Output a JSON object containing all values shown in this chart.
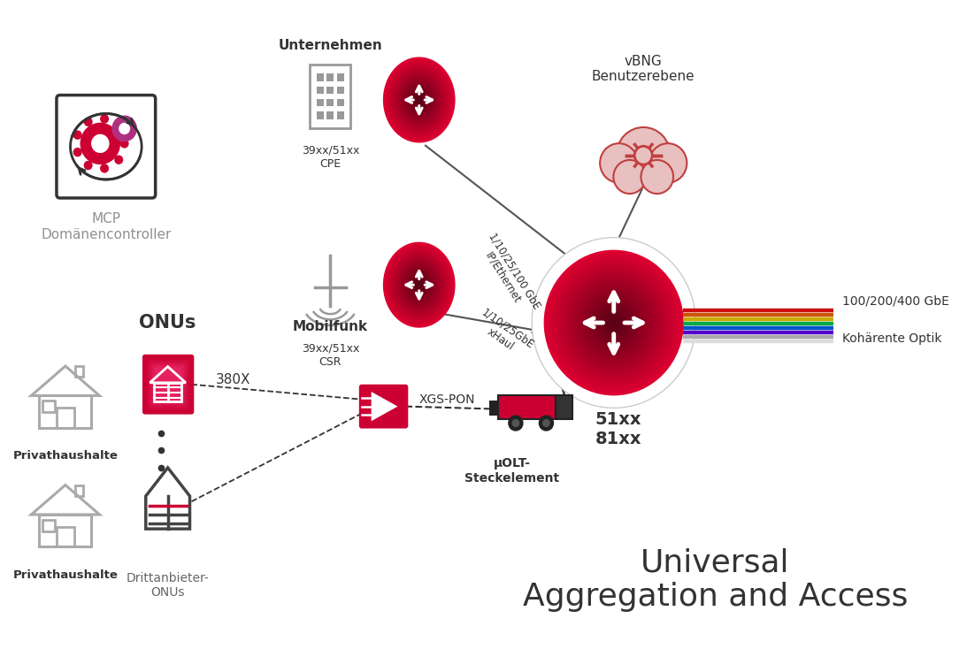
{
  "title": "Universal\nAggregation and Access",
  "title_fontsize": 26,
  "bg_color": "#ffffff",
  "main_node_label": "51xx\n81xx",
  "coherent_label": "100/200/400 GbE",
  "coherent_label2": "Kohärente Optik",
  "vbng_label": "vBNG\nBenutzerebene",
  "mcp_label": "MCP\nDomänencontroller",
  "onus_label": "ONUs",
  "onus_sub_label": "380X",
  "priv1_label": "Privathaushalte",
  "priv2_label": "Privathaushalte",
  "drittanbieter_label": "Drittanbieter-\nONUs",
  "unternehmen_label": "Unternehmen",
  "unternehmen_sub": "39xx/51xx\nCPE",
  "mobilfunk_label": "Mobilfunk",
  "mobilfunk_sub": "39xx/51xx\nCSR",
  "xgspon_label": "XGS-PON",
  "muolt_label": "μOLT-\nSteckelement",
  "line1_label": "1/10/25/100 GbE\nIP/Ethernet",
  "line2_label": "1/10/25GbE\nxHaul",
  "accent_color": "#cc0033",
  "dark_red": "#7a0020",
  "gray": "#909090",
  "dark_gray": "#333333",
  "line_gray": "#555555"
}
